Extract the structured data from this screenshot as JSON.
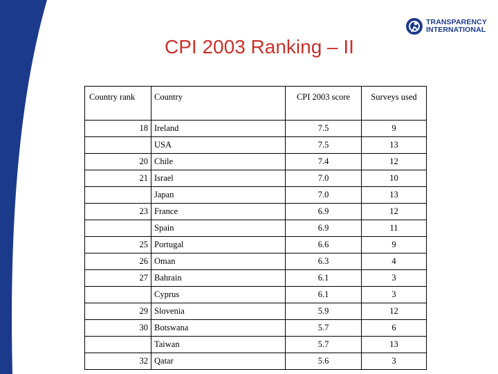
{
  "colors": {
    "band": "#1c3a8c",
    "title": "#c8312a",
    "logo": "#1c3a8c"
  },
  "logo": {
    "icon": "transparency-globe-icon",
    "line1": "TRANSPARENCY",
    "line2": "INTERNATIONAL"
  },
  "title": "CPI 2003 Ranking – II",
  "table": {
    "headers": [
      "Country rank",
      "Country",
      "CPI 2003 score",
      "Surveys used"
    ],
    "rows": [
      {
        "rank": "18",
        "country": "Ireland",
        "score": "7.5",
        "surveys": "9"
      },
      {
        "rank": "",
        "country": "USA",
        "score": "7.5",
        "surveys": "13"
      },
      {
        "rank": "20",
        "country": "Chile",
        "score": "7.4",
        "surveys": "12"
      },
      {
        "rank": "21",
        "country": "Israel",
        "score": "7.0",
        "surveys": "10"
      },
      {
        "rank": "",
        "country": "Japan",
        "score": "7.0",
        "surveys": "13"
      },
      {
        "rank": "23",
        "country": "France",
        "score": "6.9",
        "surveys": "12"
      },
      {
        "rank": "",
        "country": "Spain",
        "score": "6.9",
        "surveys": "11"
      },
      {
        "rank": "25",
        "country": "Portugal",
        "score": "6.6",
        "surveys": "9"
      },
      {
        "rank": "26",
        "country": "Oman",
        "score": "6.3",
        "surveys": "4"
      },
      {
        "rank": "27",
        "country": "Bahrain",
        "score": "6.1",
        "surveys": "3"
      },
      {
        "rank": "",
        "country": "Cyprus",
        "score": "6.1",
        "surveys": "3"
      },
      {
        "rank": "29",
        "country": "Slovenia",
        "score": "5.9",
        "surveys": "12"
      },
      {
        "rank": "30",
        "country": "Botswana",
        "score": "5.7",
        "surveys": "6"
      },
      {
        "rank": "",
        "country": "Taiwan",
        "score": "5.7",
        "surveys": "13"
      },
      {
        "rank": "32",
        "country": "Qatar",
        "score": "5.6",
        "surveys": "3"
      }
    ]
  }
}
